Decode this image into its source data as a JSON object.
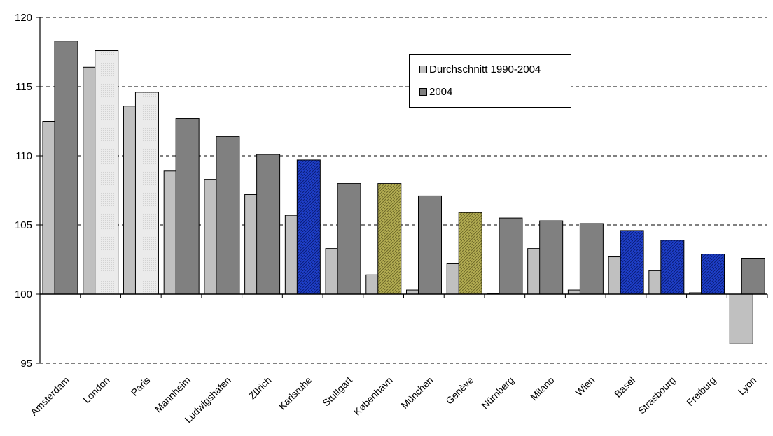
{
  "chart_data": {
    "type": "bar",
    "categories": [
      "Amsterdam",
      "London",
      "Paris",
      "Mannheim",
      "Ludwigshafen",
      "Zürich",
      "Karlsruhe",
      "Stuttgart",
      "København",
      "München",
      "Genève",
      "Nürnberg",
      "Milano",
      "Wien",
      "Basel",
      "Strasbourg",
      "Freiburg",
      "Lyon"
    ],
    "series": [
      {
        "name": "Durchschnitt 1990-2004",
        "values": [
          112.5,
          116.4,
          113.6,
          108.9,
          108.3,
          107.2,
          105.7,
          103.3,
          101.4,
          100.3,
          102.2,
          100.05,
          103.3,
          100.3,
          102.7,
          101.7,
          100.1,
          96.4
        ],
        "color": "#c0c0c0"
      },
      {
        "name": "2004",
        "values": [
          118.3,
          117.6,
          114.6,
          112.7,
          111.4,
          110.1,
          109.7,
          108.0,
          108.0,
          107.1,
          105.9,
          105.5,
          105.3,
          105.1,
          104.6,
          103.9,
          102.9,
          102.6
        ],
        "color": "#808080",
        "highlight_colors": {
          "London": "#ebebeb",
          "Paris": "#ebebeb",
          "Karlsruhe": "#1e3fc8",
          "København": "#b3ad52",
          "Genève": "#b3ad52",
          "Basel": "#1e3fc8",
          "Strasbourg": "#1e3fc8",
          "Freiburg": "#1e3fc8"
        }
      }
    ],
    "baseline": 100,
    "ylim": [
      95,
      120
    ],
    "yticks": [
      "95",
      "100",
      "105",
      "110",
      "115",
      "120"
    ],
    "grid": true,
    "legend_position": "top-right"
  }
}
